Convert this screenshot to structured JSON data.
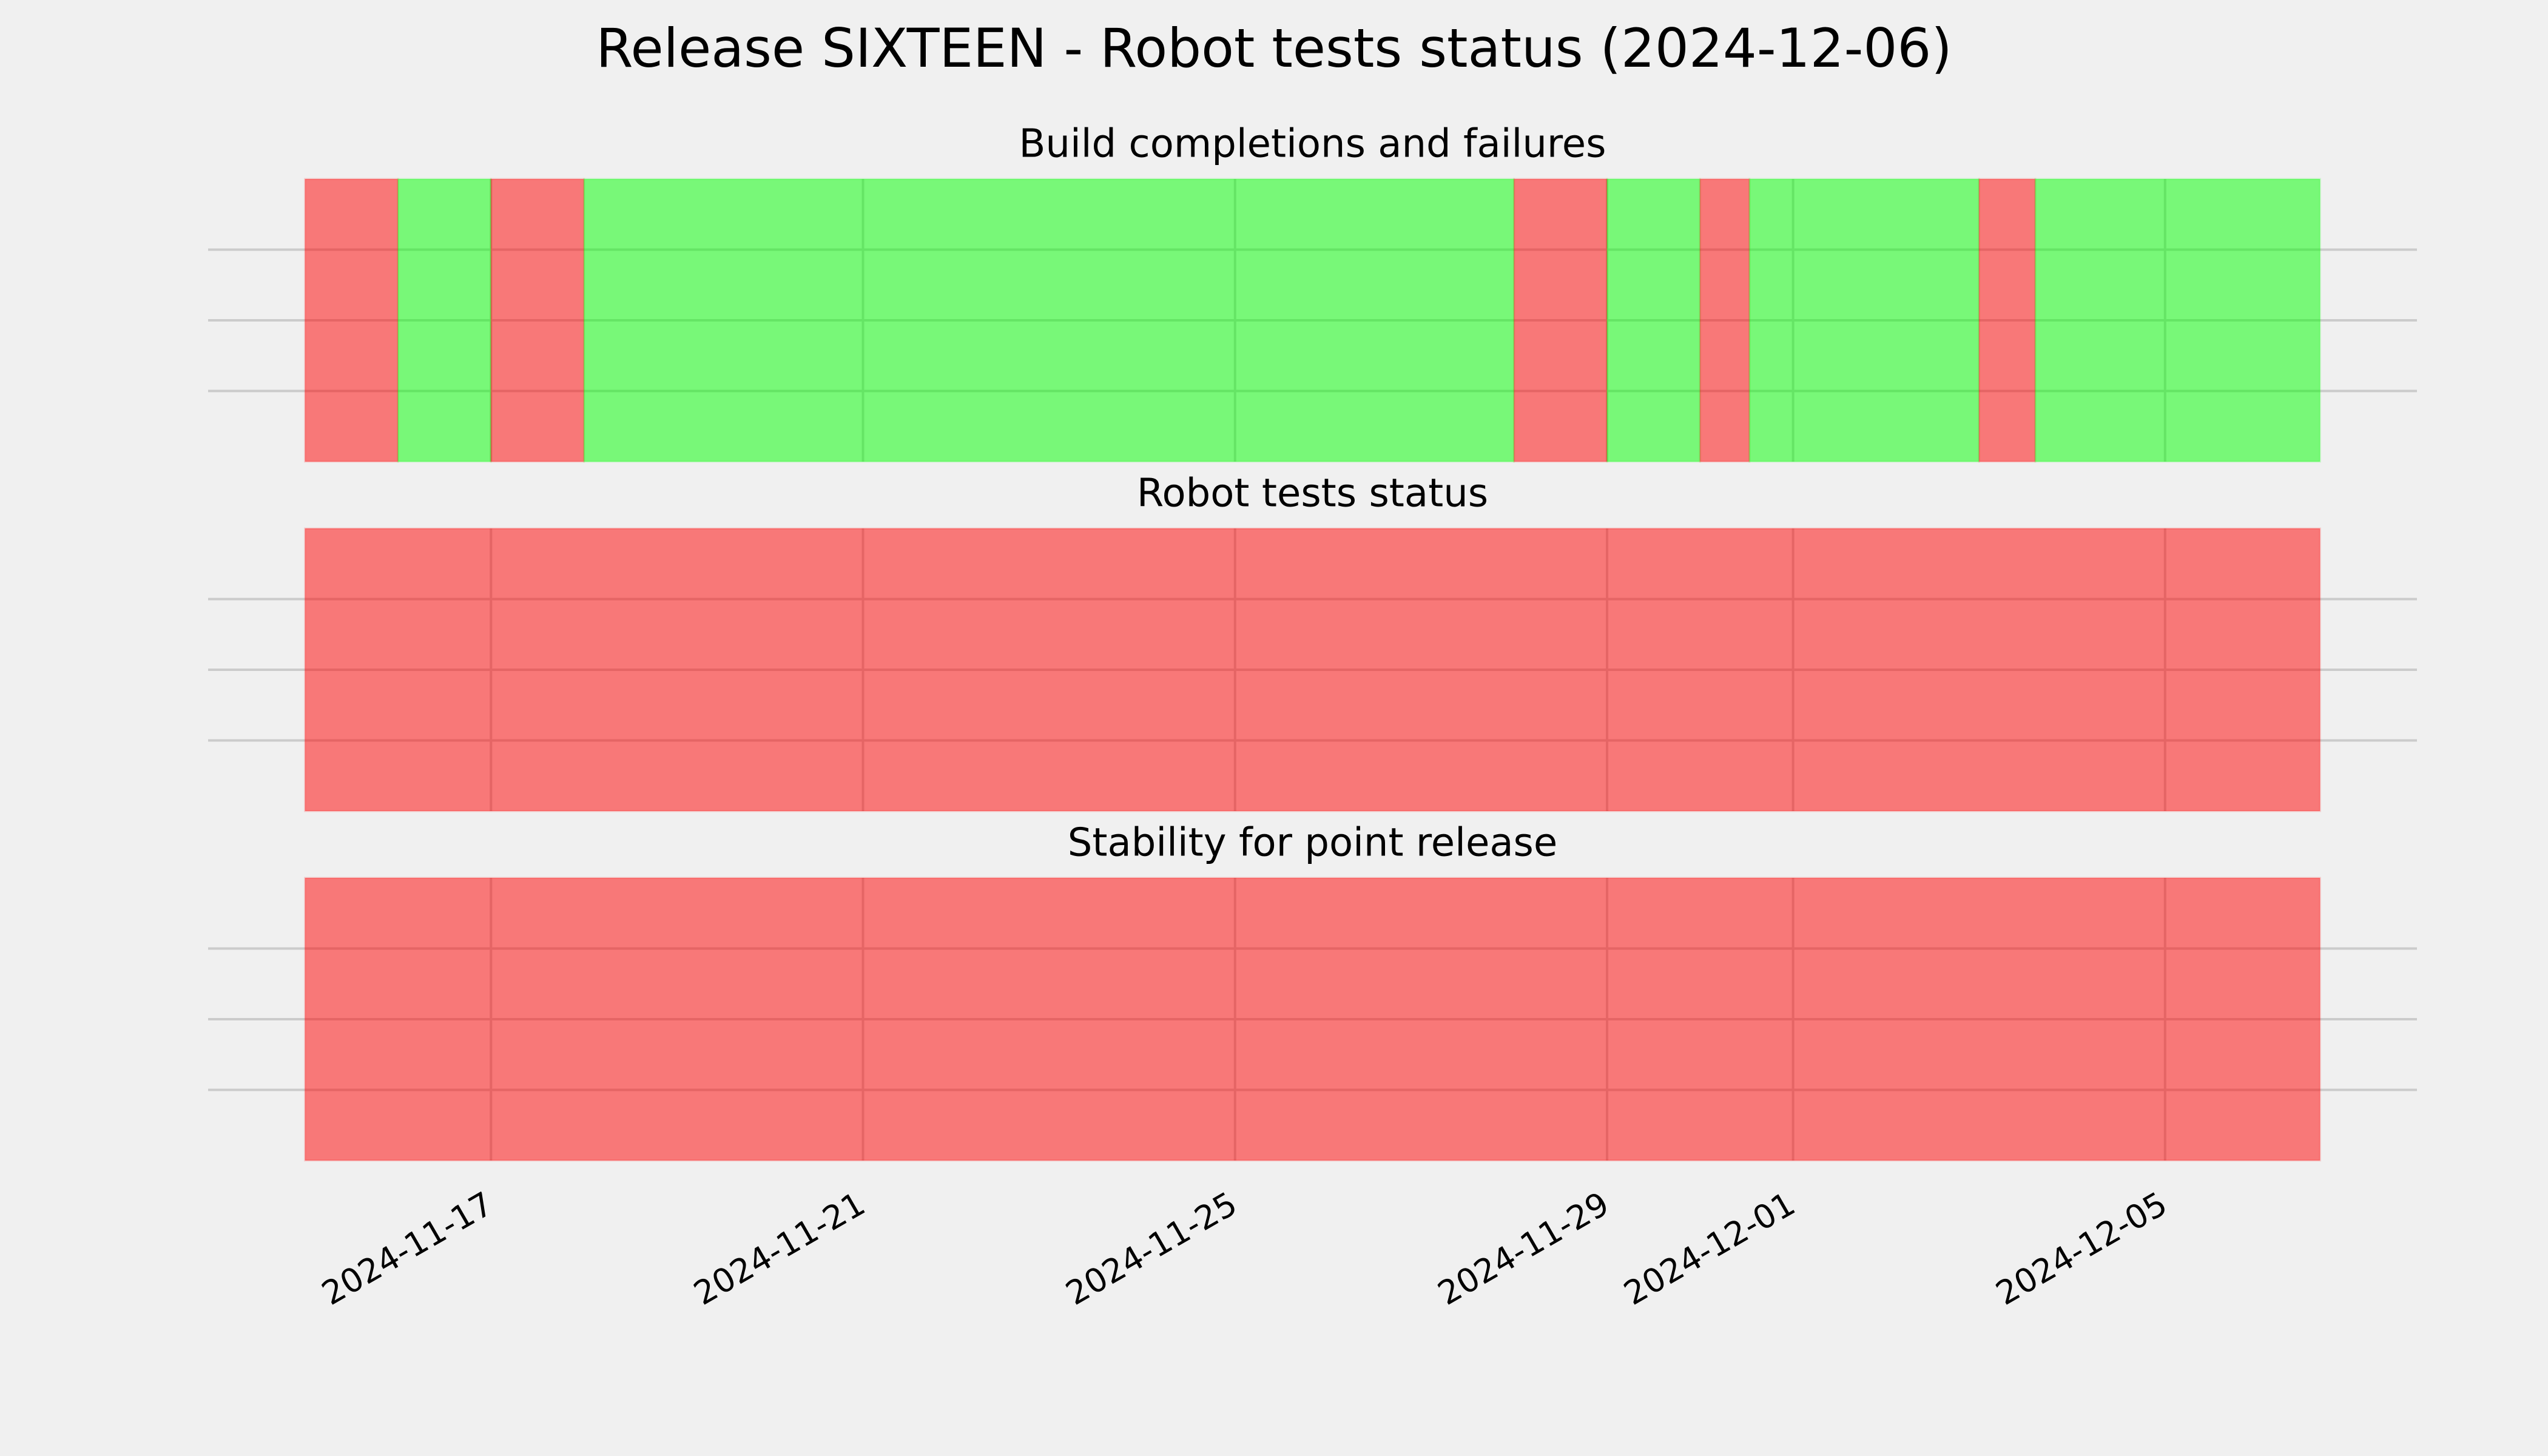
{
  "title": "Release SIXTEEN - Robot tests status (2024-12-06)",
  "chart_data": [
    {
      "type": "timeline",
      "title": "Build completions and failures",
      "xlim": [
        "2024-11-13T23:00",
        "2024-12-07T17:00"
      ],
      "ylim": [
        0,
        1
      ],
      "xticks": [
        "2024-11-17",
        "2024-11-21",
        "2024-11-25",
        "2024-11-29",
        "2024-12-01",
        "2024-12-05"
      ],
      "yticks": [
        0.25,
        0.5,
        0.75
      ],
      "grid": true,
      "span_alpha": 0.5,
      "segments": [
        {
          "start": "2024-11-15T00:00",
          "end": "2024-11-16T00:00",
          "color": "#ff0000"
        },
        {
          "start": "2024-11-16T00:00",
          "end": "2024-11-17T00:00",
          "color": "#00ff00"
        },
        {
          "start": "2024-11-17T00:00",
          "end": "2024-11-18T00:00",
          "color": "#ff0000"
        },
        {
          "start": "2024-11-18T00:00",
          "end": "2024-11-28T00:00",
          "color": "#00ff00"
        },
        {
          "start": "2024-11-28T00:00",
          "end": "2024-11-29T00:00",
          "color": "#ff0000"
        },
        {
          "start": "2024-11-29T00:00",
          "end": "2024-11-30T00:00",
          "color": "#00ff00"
        },
        {
          "start": "2024-11-30T00:00",
          "end": "2024-11-30T12:45",
          "color": "#ff0000"
        },
        {
          "start": "2024-11-30T12:45",
          "end": "2024-12-03T00:00",
          "color": "#00ff00"
        },
        {
          "start": "2024-12-03T00:00",
          "end": "2024-12-03T14:30",
          "color": "#ff0000"
        },
        {
          "start": "2024-12-03T14:30",
          "end": "2024-12-06T16:00",
          "color": "#00ff00"
        }
      ]
    },
    {
      "type": "timeline",
      "title": "Robot tests status",
      "xlim": [
        "2024-11-13T23:00",
        "2024-12-07T17:00"
      ],
      "ylim": [
        0,
        1
      ],
      "xticks": [
        "2024-11-17",
        "2024-11-21",
        "2024-11-25",
        "2024-11-29",
        "2024-12-01",
        "2024-12-05"
      ],
      "yticks": [
        0.25,
        0.5,
        0.75
      ],
      "grid": true,
      "span_alpha": 0.5,
      "segments": [
        {
          "start": "2024-11-15T00:00",
          "end": "2024-12-06T16:00",
          "color": "#ff0000"
        }
      ]
    },
    {
      "type": "timeline",
      "title": "Stability for point release",
      "xlim": [
        "2024-11-13T23:00",
        "2024-12-07T17:00"
      ],
      "ylim": [
        0,
        1
      ],
      "xticks": [
        "2024-11-17",
        "2024-11-21",
        "2024-11-25",
        "2024-11-29",
        "2024-12-01",
        "2024-12-05"
      ],
      "yticks": [
        0.25,
        0.5,
        0.75
      ],
      "grid": true,
      "span_alpha": 0.5,
      "show_xtick_labels": true,
      "segments": [
        {
          "start": "2024-11-15T00:00",
          "end": "2024-12-06T16:00",
          "color": "#ff0000"
        }
      ]
    }
  ]
}
